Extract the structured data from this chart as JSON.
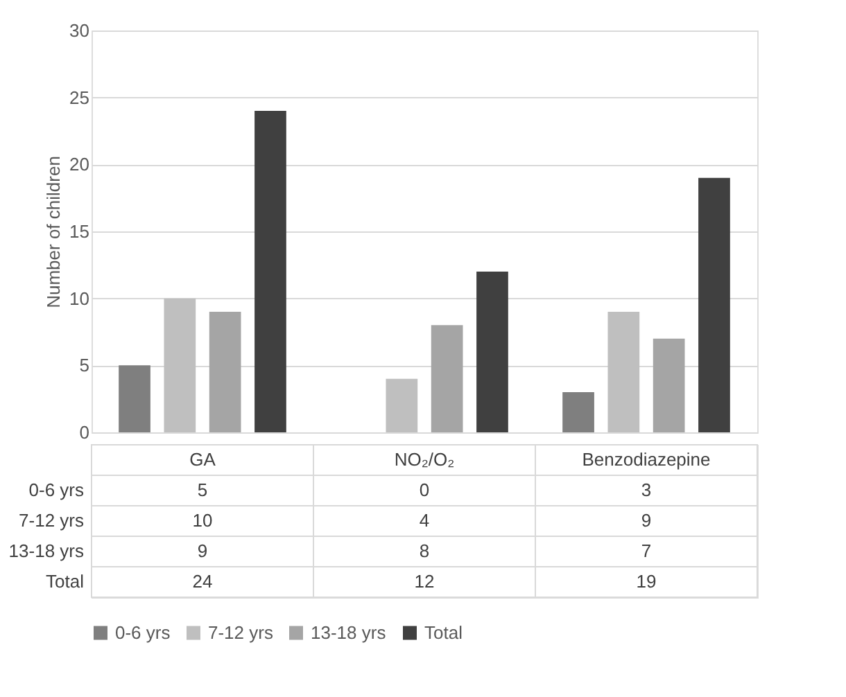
{
  "chart_data": {
    "type": "bar",
    "ylabel": "Number of children",
    "categories": [
      "GA",
      "NO₂/O₂",
      "Benzodiazepine"
    ],
    "series": [
      {
        "name": "0-6 yrs",
        "color": "#7f7f7f",
        "values": [
          5,
          0,
          3
        ]
      },
      {
        "name": "7-12 yrs",
        "color": "#bfbfbf",
        "values": [
          10,
          4,
          9
        ]
      },
      {
        "name": "13-18 yrs",
        "color": "#a5a5a5",
        "values": [
          9,
          8,
          7
        ]
      },
      {
        "name": "Total",
        "color": "#404040",
        "values": [
          24,
          12,
          19
        ]
      }
    ],
    "ylim": [
      0,
      30
    ],
    "yticks": [
      0,
      5,
      10,
      15,
      20,
      25,
      30
    ],
    "grid": "y",
    "legend": "bottom",
    "data_labels": true
  }
}
